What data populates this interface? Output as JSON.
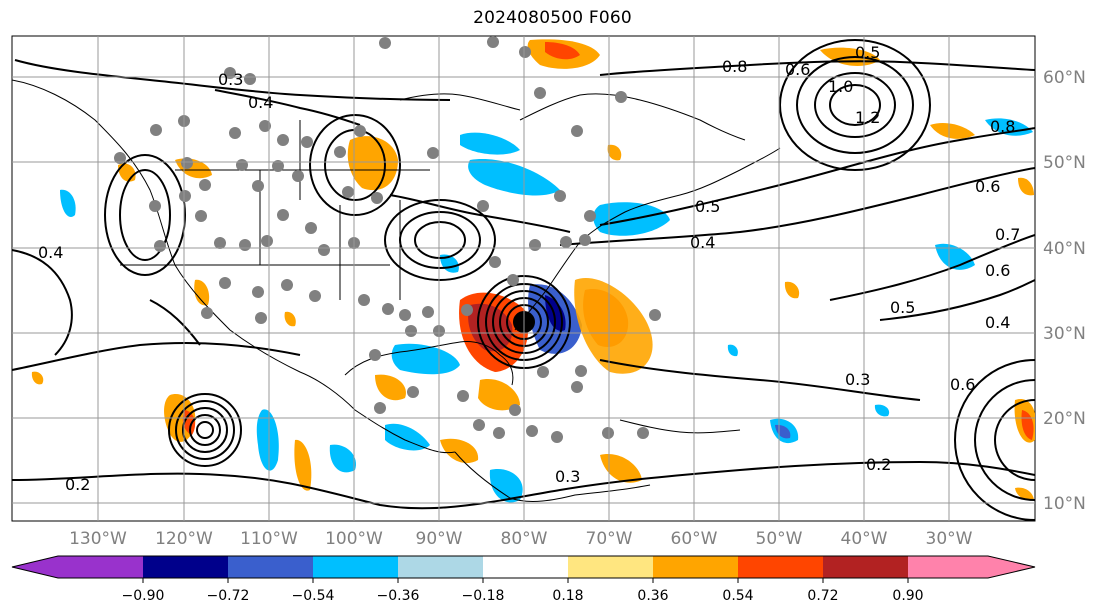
{
  "title": "2024080500 F060",
  "lat_labels": [
    "60°N",
    "50°N",
    "40°N",
    "30°N",
    "20°N",
    "10°N"
  ],
  "lon_labels": [
    "130°W",
    "120°W",
    "110°W",
    "100°W",
    "90°W",
    "80°W",
    "70°W",
    "60°W",
    "50°W",
    "40°W",
    "30°W"
  ],
  "colorbar": {
    "ticks": [
      "−0.90",
      "−0.72",
      "−0.54",
      "−0.36",
      "−0.18",
      "0.18",
      "0.36",
      "0.54",
      "0.72",
      "0.90"
    ],
    "colors": [
      "#9932cc",
      "#00008b",
      "#3a5fcd",
      "#00bfff",
      "#add8e6",
      "#ffffff",
      "#ffe680",
      "#ffa500",
      "#ff4500",
      "#b22222",
      "#ff82ab"
    ]
  },
  "contour_labels": [
    "0.2",
    "0.3",
    "0.4",
    "0.5",
    "0.6",
    "0.7",
    "0.8",
    "1.0",
    "1.2"
  ],
  "colors": {
    "grid": "#999999",
    "contour": "#000000",
    "observation_dot": "#808080",
    "storm_center": "#000000"
  }
}
